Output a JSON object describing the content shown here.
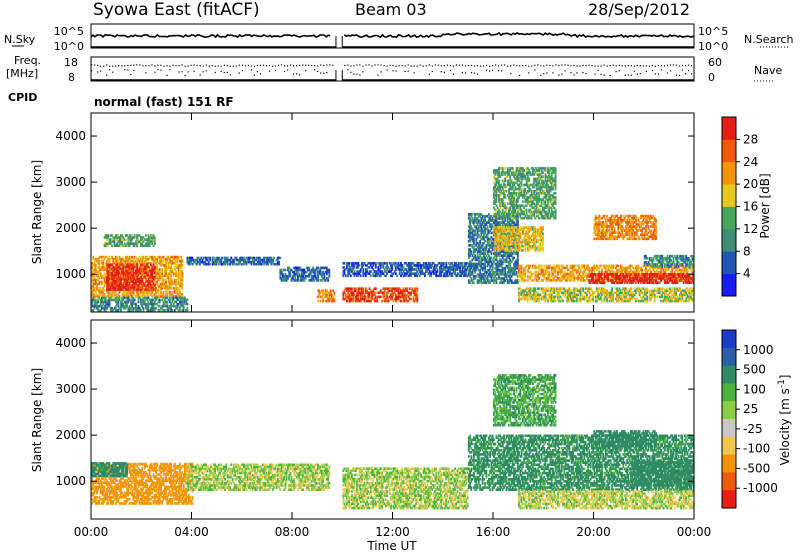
{
  "header": {
    "station": "Syowa East (fitACF)",
    "beam": "Beam 03",
    "date": "28/Sep/2012"
  },
  "strip_panels": {
    "nsky_label": "N.Sky",
    "nsearch_label": "N.Search",
    "noise_ticks_left": [
      "10^5",
      "10^0"
    ],
    "noise_ticks_right": [
      "10^5",
      "10^0"
    ],
    "freq_label_top": "Freq.",
    "freq_label_unit": "[MHz]",
    "freq_ticks": [
      "18",
      "8"
    ],
    "nave_label": "Nave",
    "nave_ticks": [
      "60",
      "0"
    ],
    "cpid_label": "CPID",
    "cpid_text": "normal (fast) 151 RF"
  },
  "colors": {
    "power_scale": [
      "#1a1aff",
      "#1f55b4",
      "#3f8c78",
      "#46a85a",
      "#e6c81e",
      "#f59600",
      "#f05a0a",
      "#e61e14"
    ],
    "velocity_scale": [
      "#e61e14",
      "#f05a0a",
      "#f59600",
      "#f0c850",
      "#c8c8c8",
      "#8ccd46",
      "#4ab43c",
      "#2e8c64",
      "#2a5faa",
      "#1a3cc8"
    ]
  },
  "chart_data": [
    {
      "type": "heatmap",
      "name": "power",
      "ylabel": "Slant Range [km]",
      "xlabel": "",
      "ylim": [
        180,
        4500
      ],
      "xlim": [
        0,
        24
      ],
      "y_ticks": [
        "1000",
        "2000",
        "3000",
        "4000"
      ],
      "colorbar_label": "Power [dB]",
      "colorbar_ticks": [
        "4",
        "8",
        "12",
        "16",
        "20",
        "24",
        "28"
      ],
      "colorbar_range": [
        0,
        30
      ],
      "regions": [
        {
          "t0": 0.0,
          "t1": 3.6,
          "r0": 500,
          "r1": 1400,
          "v": 20
        },
        {
          "t0": 0.6,
          "t1": 2.5,
          "r0": 650,
          "r1": 1200,
          "v": 28
        },
        {
          "t0": 0.5,
          "t1": 2.5,
          "r0": 1600,
          "r1": 1850,
          "v": 12
        },
        {
          "t0": 0.0,
          "t1": 3.8,
          "r0": 200,
          "r1": 500,
          "v": 10
        },
        {
          "t0": 3.8,
          "t1": 7.5,
          "r0": 1200,
          "r1": 1350,
          "v": 7
        },
        {
          "t0": 7.5,
          "t1": 9.5,
          "r0": 850,
          "r1": 1150,
          "v": 7
        },
        {
          "t0": 9.0,
          "t1": 9.7,
          "r0": 400,
          "r1": 650,
          "v": 22
        },
        {
          "t0": 10.0,
          "t1": 13.0,
          "r0": 400,
          "r1": 700,
          "v": 26
        },
        {
          "t0": 10.0,
          "t1": 15.0,
          "r0": 950,
          "r1": 1250,
          "v": 6
        },
        {
          "t0": 15.0,
          "t1": 17.0,
          "r0": 800,
          "r1": 2300,
          "v": 8
        },
        {
          "t0": 16.0,
          "t1": 18.0,
          "r0": 1500,
          "r1": 2000,
          "v": 18
        },
        {
          "t0": 17.0,
          "t1": 24.0,
          "r0": 850,
          "r1": 1200,
          "v": 20
        },
        {
          "t0": 19.8,
          "t1": 24.0,
          "r0": 800,
          "r1": 1000,
          "v": 29
        },
        {
          "t0": 17.0,
          "t1": 24.0,
          "r0": 400,
          "r1": 700,
          "v": 16
        },
        {
          "t0": 20.0,
          "t1": 22.5,
          "r0": 1750,
          "r1": 2250,
          "v": 22
        },
        {
          "t0": 22.0,
          "t1": 24.0,
          "r0": 1150,
          "r1": 1400,
          "v": 10
        },
        {
          "t0": 16.0,
          "t1": 18.5,
          "r0": 2200,
          "r1": 3300,
          "v": 12
        }
      ]
    },
    {
      "type": "heatmap",
      "name": "velocity",
      "ylabel": "Slant Range [km]",
      "xlabel": "Time UT",
      "ylim": [
        180,
        4500
      ],
      "xlim": [
        0,
        24
      ],
      "x_ticks": [
        "00:00",
        "04:00",
        "08:00",
        "12:00",
        "16:00",
        "20:00",
        "00:00"
      ],
      "y_ticks": [
        "1000",
        "2000",
        "3000",
        "4000"
      ],
      "colorbar_label": "Velocity [m s^-1]",
      "colorbar_ticks": [
        "1000",
        "500",
        "100",
        "25",
        "-25",
        "-100",
        "-500",
        "-1000"
      ],
      "regions": [
        {
          "t0": 0.0,
          "t1": 4.0,
          "r0": 500,
          "r1": 1400,
          "v": -300
        },
        {
          "t0": 0.0,
          "t1": 1.5,
          "r0": 1100,
          "r1": 1400,
          "v": 200
        },
        {
          "t0": 3.8,
          "t1": 9.5,
          "r0": 800,
          "r1": 1350,
          "v": 0
        },
        {
          "t0": 10.0,
          "t1": 15.0,
          "r0": 400,
          "r1": 1300,
          "v": 0
        },
        {
          "t0": 15.0,
          "t1": 24.0,
          "r0": 800,
          "r1": 2000,
          "v": 150
        },
        {
          "t0": 17.0,
          "t1": 24.0,
          "r0": 400,
          "r1": 800,
          "v": -20
        },
        {
          "t0": 20.0,
          "t1": 22.5,
          "r0": 1750,
          "r1": 2100,
          "v": 200
        },
        {
          "t0": 21.5,
          "t1": 24.0,
          "r0": 900,
          "r1": 1400,
          "v": 350
        },
        {
          "t0": 16.0,
          "t1": 18.5,
          "r0": 2200,
          "r1": 3300,
          "v": 80
        }
      ]
    }
  ]
}
